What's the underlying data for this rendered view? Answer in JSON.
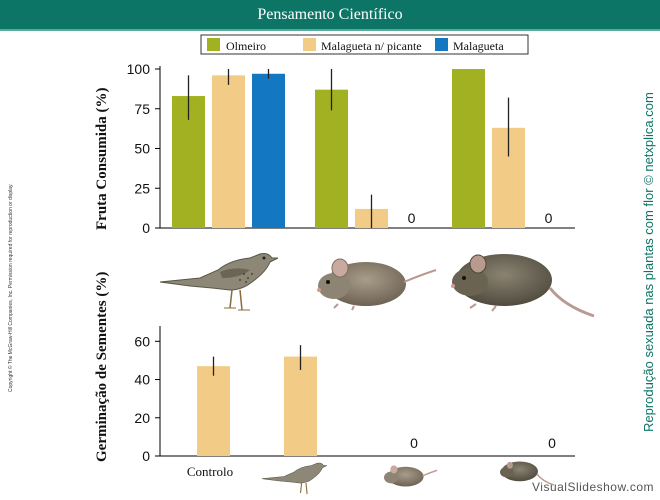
{
  "header": {
    "title": "Pensamento Científico"
  },
  "side_text": "Reprodução sexuada nas plantas com flor © netxplica.com",
  "copyright": "Copyright © The McGraw-Hill Companies, Inc. Permission required for reproduction or display.",
  "watermark": "VisualSlideshow.com",
  "colors": {
    "Olmeiro": "#a2b121",
    "Malagueta n/ picante": "#f2cc86",
    "Malagueta": "#1477c1",
    "header": "#0d7566"
  },
  "icons": [
    "bird-icon",
    "mouse-icon",
    "rat-icon"
  ],
  "chart_data": [
    {
      "type": "bar",
      "ylabel": "Fruta Consumida (%)",
      "ylim": [
        0,
        100
      ],
      "yticks": [
        0,
        25,
        50,
        75,
        100
      ],
      "legend": {
        "entries": [
          "Olmeiro",
          "Malagueta n/ picante",
          "Malagueta"
        ],
        "placement": "top"
      },
      "groups": [
        "Pássaro",
        "Rato",
        "Ratazana"
      ],
      "series": [
        {
          "name": "Olmeiro",
          "values": [
            83,
            87,
            100
          ],
          "err_low": [
            68,
            74,
            100
          ],
          "err_high": [
            96,
            100,
            100
          ]
        },
        {
          "name": "Malagueta n/ picante",
          "values": [
            96,
            12,
            63
          ],
          "err_low": [
            90,
            0,
            45
          ],
          "err_high": [
            100,
            21,
            82
          ]
        },
        {
          "name": "Malagueta",
          "values": [
            97,
            0,
            0
          ],
          "err_low": [
            94,
            0,
            0
          ],
          "err_high": [
            100,
            0,
            0
          ]
        }
      ],
      "zero_labels": [
        "0",
        "0"
      ]
    },
    {
      "type": "bar",
      "ylabel": "Germinação de Sementes (%)",
      "ylim": [
        0,
        68
      ],
      "yticks": [
        0,
        20,
        40,
        60
      ],
      "categories": [
        "Controlo",
        "",
        "",
        ""
      ],
      "values": [
        47,
        52,
        0,
        0
      ],
      "err_low": [
        42,
        45,
        0,
        0
      ],
      "err_high": [
        52,
        58,
        0,
        0
      ],
      "zero_labels": [
        "0",
        "0"
      ]
    }
  ]
}
